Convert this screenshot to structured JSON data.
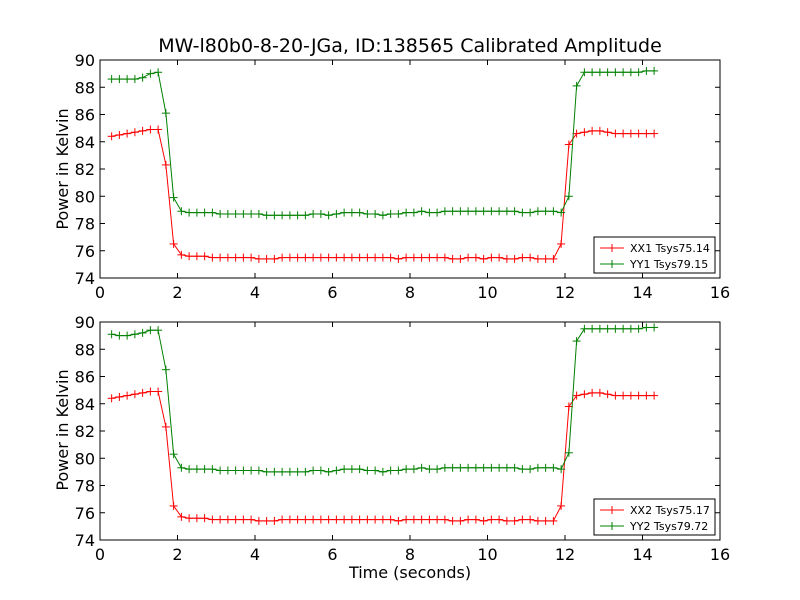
{
  "title": "MW-l80b0-8-20-JGa, ID:138565 Calibrated Amplitude",
  "chart_data": [
    {
      "type": "line",
      "ylabel": "Power in Kelvin",
      "xlabel": "",
      "xlim": [
        0,
        16
      ],
      "ylim": [
        74,
        90
      ],
      "xticks": [
        "0",
        "2",
        "4",
        "6",
        "8",
        "10",
        "12",
        "14",
        "16"
      ],
      "yticks": [
        "74",
        "76",
        "78",
        "80",
        "82",
        "84",
        "86",
        "88",
        "90"
      ],
      "grid": false,
      "legend_position": "lower-right",
      "x": [
        0.3,
        0.5,
        0.7,
        0.9,
        1.1,
        1.3,
        1.5,
        1.7,
        1.9,
        2.1,
        2.3,
        2.5,
        2.7,
        2.9,
        3.1,
        3.3,
        3.5,
        3.7,
        3.9,
        4.1,
        4.3,
        4.5,
        4.7,
        4.9,
        5.1,
        5.3,
        5.5,
        5.7,
        5.9,
        6.1,
        6.3,
        6.5,
        6.7,
        6.9,
        7.1,
        7.3,
        7.5,
        7.7,
        7.9,
        8.1,
        8.3,
        8.5,
        8.7,
        8.9,
        9.1,
        9.3,
        9.5,
        9.7,
        9.9,
        10.1,
        10.3,
        10.5,
        10.7,
        10.9,
        11.1,
        11.3,
        11.5,
        11.7,
        11.9,
        12.1,
        12.3,
        12.5,
        12.7,
        12.9,
        13.1,
        13.3,
        13.5,
        13.7,
        13.9,
        14.1,
        14.3
      ],
      "series": [
        {
          "name": "XX1 Tsys75.14",
          "color": "#ff0000",
          "values": [
            84.4,
            84.5,
            84.6,
            84.7,
            84.8,
            84.9,
            84.9,
            82.3,
            76.5,
            75.7,
            75.6,
            75.6,
            75.6,
            75.5,
            75.5,
            75.5,
            75.5,
            75.5,
            75.5,
            75.4,
            75.4,
            75.4,
            75.5,
            75.5,
            75.5,
            75.5,
            75.5,
            75.5,
            75.5,
            75.5,
            75.5,
            75.5,
            75.5,
            75.5,
            75.5,
            75.5,
            75.5,
            75.4,
            75.5,
            75.5,
            75.5,
            75.5,
            75.5,
            75.5,
            75.4,
            75.4,
            75.5,
            75.5,
            75.4,
            75.5,
            75.5,
            75.4,
            75.4,
            75.5,
            75.5,
            75.4,
            75.4,
            75.4,
            76.5,
            83.8,
            84.6,
            84.7,
            84.8,
            84.8,
            84.7,
            84.6,
            84.6,
            84.6,
            84.6,
            84.6,
            84.6
          ]
        },
        {
          "name": "YY1 Tsys79.15",
          "color": "#008000",
          "values": [
            88.6,
            88.6,
            88.6,
            88.6,
            88.7,
            89.0,
            89.1,
            86.1,
            79.9,
            78.9,
            78.8,
            78.8,
            78.8,
            78.8,
            78.7,
            78.7,
            78.7,
            78.7,
            78.7,
            78.7,
            78.6,
            78.6,
            78.6,
            78.6,
            78.6,
            78.6,
            78.7,
            78.7,
            78.6,
            78.7,
            78.8,
            78.8,
            78.8,
            78.7,
            78.7,
            78.6,
            78.7,
            78.7,
            78.8,
            78.8,
            78.9,
            78.8,
            78.8,
            78.9,
            78.9,
            78.9,
            78.9,
            78.9,
            78.9,
            78.9,
            78.9,
            78.9,
            78.9,
            78.8,
            78.8,
            78.9,
            78.9,
            78.9,
            78.8,
            80.0,
            88.1,
            89.1,
            89.1,
            89.1,
            89.1,
            89.1,
            89.1,
            89.1,
            89.1,
            89.2,
            89.2
          ]
        }
      ]
    },
    {
      "type": "line",
      "ylabel": "Power in Kelvin",
      "xlabel": "Time (seconds)",
      "xlim": [
        0,
        16
      ],
      "ylim": [
        74,
        90
      ],
      "xticks": [
        "0",
        "2",
        "4",
        "6",
        "8",
        "10",
        "12",
        "14",
        "16"
      ],
      "yticks": [
        "74",
        "76",
        "78",
        "80",
        "82",
        "84",
        "86",
        "88",
        "90"
      ],
      "grid": false,
      "legend_position": "lower-right",
      "x": [
        0.3,
        0.5,
        0.7,
        0.9,
        1.1,
        1.3,
        1.5,
        1.7,
        1.9,
        2.1,
        2.3,
        2.5,
        2.7,
        2.9,
        3.1,
        3.3,
        3.5,
        3.7,
        3.9,
        4.1,
        4.3,
        4.5,
        4.7,
        4.9,
        5.1,
        5.3,
        5.5,
        5.7,
        5.9,
        6.1,
        6.3,
        6.5,
        6.7,
        6.9,
        7.1,
        7.3,
        7.5,
        7.7,
        7.9,
        8.1,
        8.3,
        8.5,
        8.7,
        8.9,
        9.1,
        9.3,
        9.5,
        9.7,
        9.9,
        10.1,
        10.3,
        10.5,
        10.7,
        10.9,
        11.1,
        11.3,
        11.5,
        11.7,
        11.9,
        12.1,
        12.3,
        12.5,
        12.7,
        12.9,
        13.1,
        13.3,
        13.5,
        13.7,
        13.9,
        14.1,
        14.3
      ],
      "series": [
        {
          "name": "XX2 Tsys75.17",
          "color": "#ff0000",
          "values": [
            84.4,
            84.5,
            84.6,
            84.7,
            84.8,
            84.9,
            84.9,
            82.3,
            76.5,
            75.7,
            75.6,
            75.6,
            75.6,
            75.5,
            75.5,
            75.5,
            75.5,
            75.5,
            75.5,
            75.4,
            75.4,
            75.4,
            75.5,
            75.5,
            75.5,
            75.5,
            75.5,
            75.5,
            75.5,
            75.5,
            75.5,
            75.5,
            75.5,
            75.5,
            75.5,
            75.5,
            75.5,
            75.4,
            75.5,
            75.5,
            75.5,
            75.5,
            75.5,
            75.5,
            75.4,
            75.4,
            75.5,
            75.5,
            75.4,
            75.5,
            75.5,
            75.4,
            75.4,
            75.5,
            75.5,
            75.4,
            75.4,
            75.4,
            76.5,
            83.8,
            84.6,
            84.7,
            84.8,
            84.8,
            84.7,
            84.6,
            84.6,
            84.6,
            84.6,
            84.6,
            84.6
          ]
        },
        {
          "name": "YY2 Tsys79.72",
          "color": "#008000",
          "values": [
            89.1,
            89.0,
            89.0,
            89.1,
            89.2,
            89.4,
            89.4,
            86.5,
            80.3,
            79.3,
            79.2,
            79.2,
            79.2,
            79.2,
            79.1,
            79.1,
            79.1,
            79.1,
            79.1,
            79.1,
            79.0,
            79.0,
            79.0,
            79.0,
            79.0,
            79.0,
            79.1,
            79.1,
            79.0,
            79.1,
            79.2,
            79.2,
            79.2,
            79.1,
            79.1,
            79.0,
            79.1,
            79.1,
            79.2,
            79.2,
            79.3,
            79.2,
            79.2,
            79.3,
            79.3,
            79.3,
            79.3,
            79.3,
            79.3,
            79.3,
            79.3,
            79.3,
            79.3,
            79.2,
            79.2,
            79.3,
            79.3,
            79.3,
            79.2,
            80.4,
            88.6,
            89.5,
            89.5,
            89.5,
            89.5,
            89.5,
            89.5,
            89.5,
            89.5,
            89.6,
            89.6
          ]
        }
      ]
    }
  ]
}
